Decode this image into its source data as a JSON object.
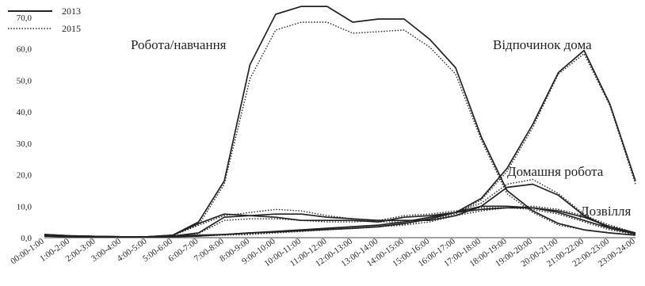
{
  "chart_data": {
    "type": "line",
    "title": "",
    "xlabel": "",
    "ylabel": "",
    "ylim": [
      0,
      70
    ],
    "yticks": [
      "0,0",
      "10,0",
      "20,0",
      "30,0",
      "40,0",
      "50,0",
      "60,0",
      "70,0"
    ],
    "ytick_values": [
      0,
      10,
      20,
      30,
      40,
      50,
      60,
      70
    ],
    "grid": false,
    "legend_position": "top-left",
    "categories": [
      "00:00-1:00",
      "1:00-2:00",
      "2:00-3:00",
      "3:00-4:00",
      "4:00-5:00",
      "5:00-6:00",
      "6:00-7:00",
      "7:00-8:00",
      "8:00-9:00",
      "9:00-10:00",
      "10:00-11:00",
      "11:00-12:00",
      "12:00-13:00",
      "13:00-14:00",
      "14:00-15:00",
      "15:00-16:00",
      "16:00-17:00",
      "17:00-18:00",
      "18:00-19:00",
      "19:00-20:00",
      "20:00-21:00",
      "21:00-22:00",
      "22:00-23:00",
      "23:00-24:00"
    ],
    "legend": [
      {
        "label": "2013",
        "style": "solid"
      },
      {
        "label": "2015",
        "style": "dotted"
      }
    ],
    "groups": [
      {
        "label": "Робота/навчання",
        "series": [
          {
            "year": "2013",
            "style": "solid",
            "values": [
              0.8,
              0.5,
              0.4,
              0.3,
              0.3,
              0.8,
              5.0,
              18.0,
              55.0,
              71.0,
              73.5,
              73.5,
              68.5,
              69.5,
              69.5,
              63.0,
              54.0,
              32.0,
              15.0,
              8.5,
              4.5,
              2.5,
              1.5,
              0.8
            ]
          },
          {
            "year": "2015",
            "style": "dotted",
            "values": [
              0.6,
              0.4,
              0.3,
              0.3,
              0.3,
              0.6,
              4.0,
              17.0,
              50.5,
              66.0,
              68.5,
              68.5,
              65.0,
              65.5,
              66.0,
              60.5,
              52.0,
              31.0,
              14.0,
              8.0,
              4.0,
              2.5,
              1.5,
              0.7
            ]
          }
        ]
      },
      {
        "label": "Відпочинок дома",
        "series": [
          {
            "year": "2013",
            "style": "solid",
            "values": [
              1.0,
              0.6,
              0.4,
              0.3,
              0.3,
              0.5,
              0.8,
              1.0,
              1.5,
              1.8,
              2.2,
              2.6,
              3.0,
              3.5,
              4.5,
              6.0,
              8.0,
              12.5,
              22.0,
              36.0,
              52.5,
              59.5,
              42.5,
              18.0
            ]
          },
          {
            "year": "2015",
            "style": "dotted",
            "values": [
              1.0,
              0.6,
              0.4,
              0.3,
              0.3,
              0.5,
              0.7,
              1.0,
              1.3,
              1.7,
              2.1,
              2.5,
              2.9,
              3.4,
              4.3,
              5.8,
              7.5,
              12.0,
              21.0,
              35.0,
              52.0,
              58.5,
              42.0,
              17.0
            ]
          }
        ]
      },
      {
        "label": "Домашня робота",
        "series": [
          {
            "year": "2013",
            "style": "solid",
            "values": [
              1.0,
              0.6,
              0.4,
              0.3,
              0.3,
              0.8,
              4.5,
              7.5,
              7.0,
              7.5,
              7.5,
              6.5,
              6.0,
              5.5,
              5.5,
              5.5,
              7.0,
              10.0,
              16.0,
              17.0,
              13.5,
              7.0,
              3.0,
              1.2
            ]
          },
          {
            "year": "2015",
            "style": "dotted",
            "values": [
              1.0,
              0.6,
              0.4,
              0.3,
              0.3,
              0.8,
              4.0,
              7.0,
              8.0,
              9.0,
              8.5,
              7.0,
              6.0,
              5.0,
              5.0,
              6.0,
              8.0,
              11.0,
              17.0,
              18.5,
              14.0,
              7.5,
              3.0,
              1.2
            ]
          }
        ]
      },
      {
        "label": "Дозвілля",
        "series": [
          {
            "year": "2013",
            "style": "solid",
            "values": [
              0.5,
              0.3,
              0.2,
              0.2,
              0.2,
              0.3,
              0.5,
              1.0,
              1.5,
              2.0,
              2.5,
              3.0,
              3.5,
              4.0,
              5.0,
              6.5,
              8.0,
              10.0,
              10.0,
              9.5,
              8.5,
              6.5,
              3.5,
              1.5
            ]
          },
          {
            "year": "2015",
            "style": "dotted",
            "values": [
              0.5,
              0.3,
              0.2,
              0.2,
              0.2,
              0.3,
              0.5,
              0.8,
              1.0,
              1.5,
              2.0,
              2.5,
              3.0,
              3.5,
              4.0,
              5.0,
              7.0,
              8.5,
              9.5,
              10.0,
              9.0,
              7.0,
              4.0,
              1.5
            ]
          }
        ]
      },
      {
        "label": "",
        "series": [
          {
            "year": "2013",
            "style": "solid",
            "values": [
              0.5,
              0.3,
              0.2,
              0.2,
              0.2,
              0.5,
              1.5,
              6.5,
              7.0,
              6.5,
              5.5,
              5.5,
              5.5,
              5.0,
              6.5,
              7.0,
              8.0,
              9.0,
              9.5,
              9.5,
              8.0,
              5.5,
              3.0,
              1.2
            ]
          },
          {
            "year": "2015",
            "style": "dotted",
            "values": [
              0.5,
              0.3,
              0.2,
              0.2,
              0.2,
              0.5,
              1.3,
              5.5,
              6.0,
              6.0,
              5.5,
              5.0,
              5.0,
              5.5,
              7.0,
              7.5,
              8.5,
              9.5,
              9.5,
              9.0,
              7.5,
              5.0,
              2.5,
              1.0
            ]
          }
        ]
      }
    ]
  }
}
